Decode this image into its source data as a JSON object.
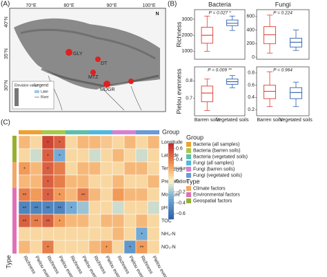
{
  "panel_labels": [
    "(A)",
    "(B)",
    "(C)"
  ],
  "map": {
    "lon_labels": [
      "70°E",
      "80°E",
      "90°E",
      "100°E"
    ],
    "lat_labels": [
      "40°N",
      "35°N",
      "30°N"
    ],
    "north": "N",
    "sites": [
      "GLY",
      "DT",
      "MTZ",
      "MDGR"
    ],
    "legend_title": "Legend",
    "legend_items": [
      "Elevation value",
      "Lake",
      "River"
    ]
  },
  "chart_data": [
    {
      "type": "box",
      "title": "Bacteria",
      "ylabel": "Richness",
      "annotation": "P = 0.027 *",
      "ylim": [
        500,
        3600
      ],
      "yticks": [
        1000,
        2000,
        3000
      ],
      "boxes": [
        {
          "color": "#e03a2f",
          "min": 1000,
          "q1": 1500,
          "median": 2000,
          "q3": 2500,
          "max": 3200
        },
        {
          "color": "#2e5fa8",
          "min": 2300,
          "q1": 2600,
          "median": 2750,
          "q3": 2950,
          "max": 3200
        }
      ]
    },
    {
      "type": "box",
      "title": "Fungi",
      "annotation": "P = 0.224",
      "ylim": [
        -30,
        700
      ],
      "yticks": [
        0,
        200,
        400,
        600
      ],
      "boxes": [
        {
          "color": "#e03a2f",
          "min": 60,
          "q1": 200,
          "median": 330,
          "q3": 450,
          "max": 620
        },
        {
          "color": "#2e5fa8",
          "min": 100,
          "q1": 150,
          "median": 220,
          "q3": 280,
          "max": 400
        }
      ]
    },
    {
      "type": "box",
      "ylabel": "Pielou evenness",
      "annotation": "P = 0.009 **",
      "categories": [
        "Barren soils",
        "Vegetated soils"
      ],
      "ylim": [
        0.6,
        0.88
      ],
      "yticks": [
        0.7,
        0.8
      ],
      "boxes": [
        {
          "color": "#e03a2f",
          "min": 0.63,
          "q1": 0.68,
          "median": 0.73,
          "q3": 0.77,
          "max": 0.81
        },
        {
          "color": "#2e5fa8",
          "min": 0.76,
          "q1": 0.78,
          "median": 0.795,
          "q3": 0.81,
          "max": 0.83
        }
      ]
    },
    {
      "type": "box",
      "annotation": "P = 0.964",
      "categories": [
        "Barren soils",
        "Vegetated soils"
      ],
      "ylim": [
        0.1,
        0.9
      ],
      "yticks": [
        0.2,
        0.4,
        0.6,
        0.8
      ],
      "boxes": [
        {
          "color": "#e03a2f",
          "min": 0.25,
          "q1": 0.38,
          "median": 0.5,
          "q3": 0.6,
          "max": 0.82
        },
        {
          "color": "#2e5fa8",
          "min": 0.25,
          "q1": 0.38,
          "median": 0.48,
          "q3": 0.56,
          "max": 0.65
        }
      ]
    },
    {
      "type": "heatmap",
      "group_title": "Group",
      "group_legend_title": "Group",
      "type_title": "Type",
      "type_legend_title": "Type",
      "rows": [
        "Longitude",
        "Latitude",
        "Temperature",
        "Precipitation",
        "Moisture",
        "pH",
        "TOC",
        "NH₄-N",
        "NO₃-N"
      ],
      "columns": [
        "Richness",
        "Pielou evenness",
        "Richness",
        "Pielou evenness",
        "Richness",
        "Pielou evenness",
        "Richness",
        "Pielou evenness",
        "Richness",
        "Pielou evenness",
        "Richness",
        "Pielou evenness"
      ],
      "groups": [
        {
          "name": "Bacteria (all samples)",
          "color": "#f0a030"
        },
        {
          "name": "Bacteria (barren soils)",
          "color": "#a8c84a"
        },
        {
          "name": "Bacteria (vegetated soils)",
          "color": "#5cc0a8"
        },
        {
          "name": "Fungi (all samples)",
          "color": "#4fb8e0"
        },
        {
          "name": "Fungi (barren soils)",
          "color": "#d880d0"
        },
        {
          "name": "Fungi (vegetated soils)",
          "color": "#6a9ad8"
        }
      ],
      "column_groups": [
        0,
        0,
        1,
        1,
        2,
        2,
        3,
        3,
        4,
        4,
        5,
        5
      ],
      "types": [
        {
          "name": "Climate factors",
          "color": "#f0a868"
        },
        {
          "name": "Environmental factors",
          "color": "#e070b8"
        },
        {
          "name": "Geospatial factors",
          "color": "#98b030"
        }
      ],
      "row_types": [
        2,
        2,
        0,
        0,
        1,
        1,
        1,
        1,
        1
      ],
      "zlim": [
        -0.7,
        0.7
      ],
      "zticks": [
        0.6,
        0.4,
        0.2,
        0,
        {
          "value": -0.2,
          "label": "−0.2"
        },
        {
          "value": -0.4,
          "label": "−0.4"
        },
        {
          "value": -0.6,
          "label": "−0.6"
        }
      ],
      "values": [
        [
          0.2,
          0.1,
          0.6,
          0.5,
          0.1,
          0.2,
          0.2,
          0.15,
          0.1,
          0.2,
          0.1,
          0.2
        ],
        [
          0.1,
          -0.1,
          0.5,
          -0.3,
          0.1,
          0.1,
          -0.1,
          0.1,
          0.2,
          0.1,
          -0.1,
          0.1
        ],
        [
          0.3,
          0.2,
          0.5,
          0.4,
          0.1,
          0.2,
          0.2,
          0.1,
          0.1,
          0.2,
          0.2,
          0.1
        ],
        [
          0.2,
          0.2,
          0.5,
          0.4,
          0.2,
          0.2,
          0.1,
          0.1,
          0.2,
          0.1,
          0.1,
          0.2
        ],
        [
          0.4,
          0.3,
          0.5,
          0.3,
          0.2,
          0.4,
          0.2,
          0.1,
          0.3,
          0.2,
          0.2,
          0.1
        ],
        [
          -0.5,
          -0.5,
          -0.5,
          -0.5,
          -0.3,
          -0.2,
          0.1,
          0.1,
          -0.1,
          0.1,
          0.1,
          -0.1
        ],
        [
          0.5,
          0.4,
          0.5,
          0.3,
          0.2,
          0.2,
          0.1,
          0.2,
          0.2,
          0.1,
          0.2,
          0.1
        ],
        [
          0.1,
          0.1,
          0.1,
          0.1,
          0.1,
          0.1,
          0.1,
          0.1,
          0.2,
          0.1,
          -0.3,
          0.1
        ],
        [
          0.2,
          0.1,
          0.4,
          0.1,
          0.1,
          0.1,
          0.2,
          0.3,
          0.1,
          -0.4,
          0.3,
          0.1
        ]
      ],
      "stars": [
        [
          null,
          null,
          "*",
          "*",
          null,
          null,
          null,
          null,
          null,
          null,
          null,
          null
        ],
        [
          null,
          null,
          "*",
          "*",
          null,
          null,
          null,
          null,
          null,
          null,
          null,
          null
        ],
        [
          "*",
          null,
          "*",
          null,
          null,
          null,
          null,
          null,
          null,
          null,
          null,
          null
        ],
        [
          null,
          null,
          "*",
          null,
          null,
          null,
          null,
          null,
          null,
          null,
          null,
          null
        ],
        [
          "**",
          null,
          "*",
          "*",
          null,
          "**",
          null,
          null,
          null,
          null,
          null,
          null
        ],
        [
          "**",
          "**",
          "**",
          "**",
          "*",
          null,
          null,
          null,
          null,
          null,
          null,
          null
        ],
        [
          "**",
          "**",
          "**",
          "*",
          null,
          null,
          null,
          null,
          null,
          null,
          null,
          null
        ],
        [
          null,
          null,
          null,
          null,
          null,
          null,
          null,
          null,
          null,
          null,
          "*",
          null
        ],
        [
          null,
          null,
          "*",
          null,
          null,
          null,
          null,
          "*",
          null,
          "*",
          "**",
          null
        ]
      ]
    }
  ]
}
